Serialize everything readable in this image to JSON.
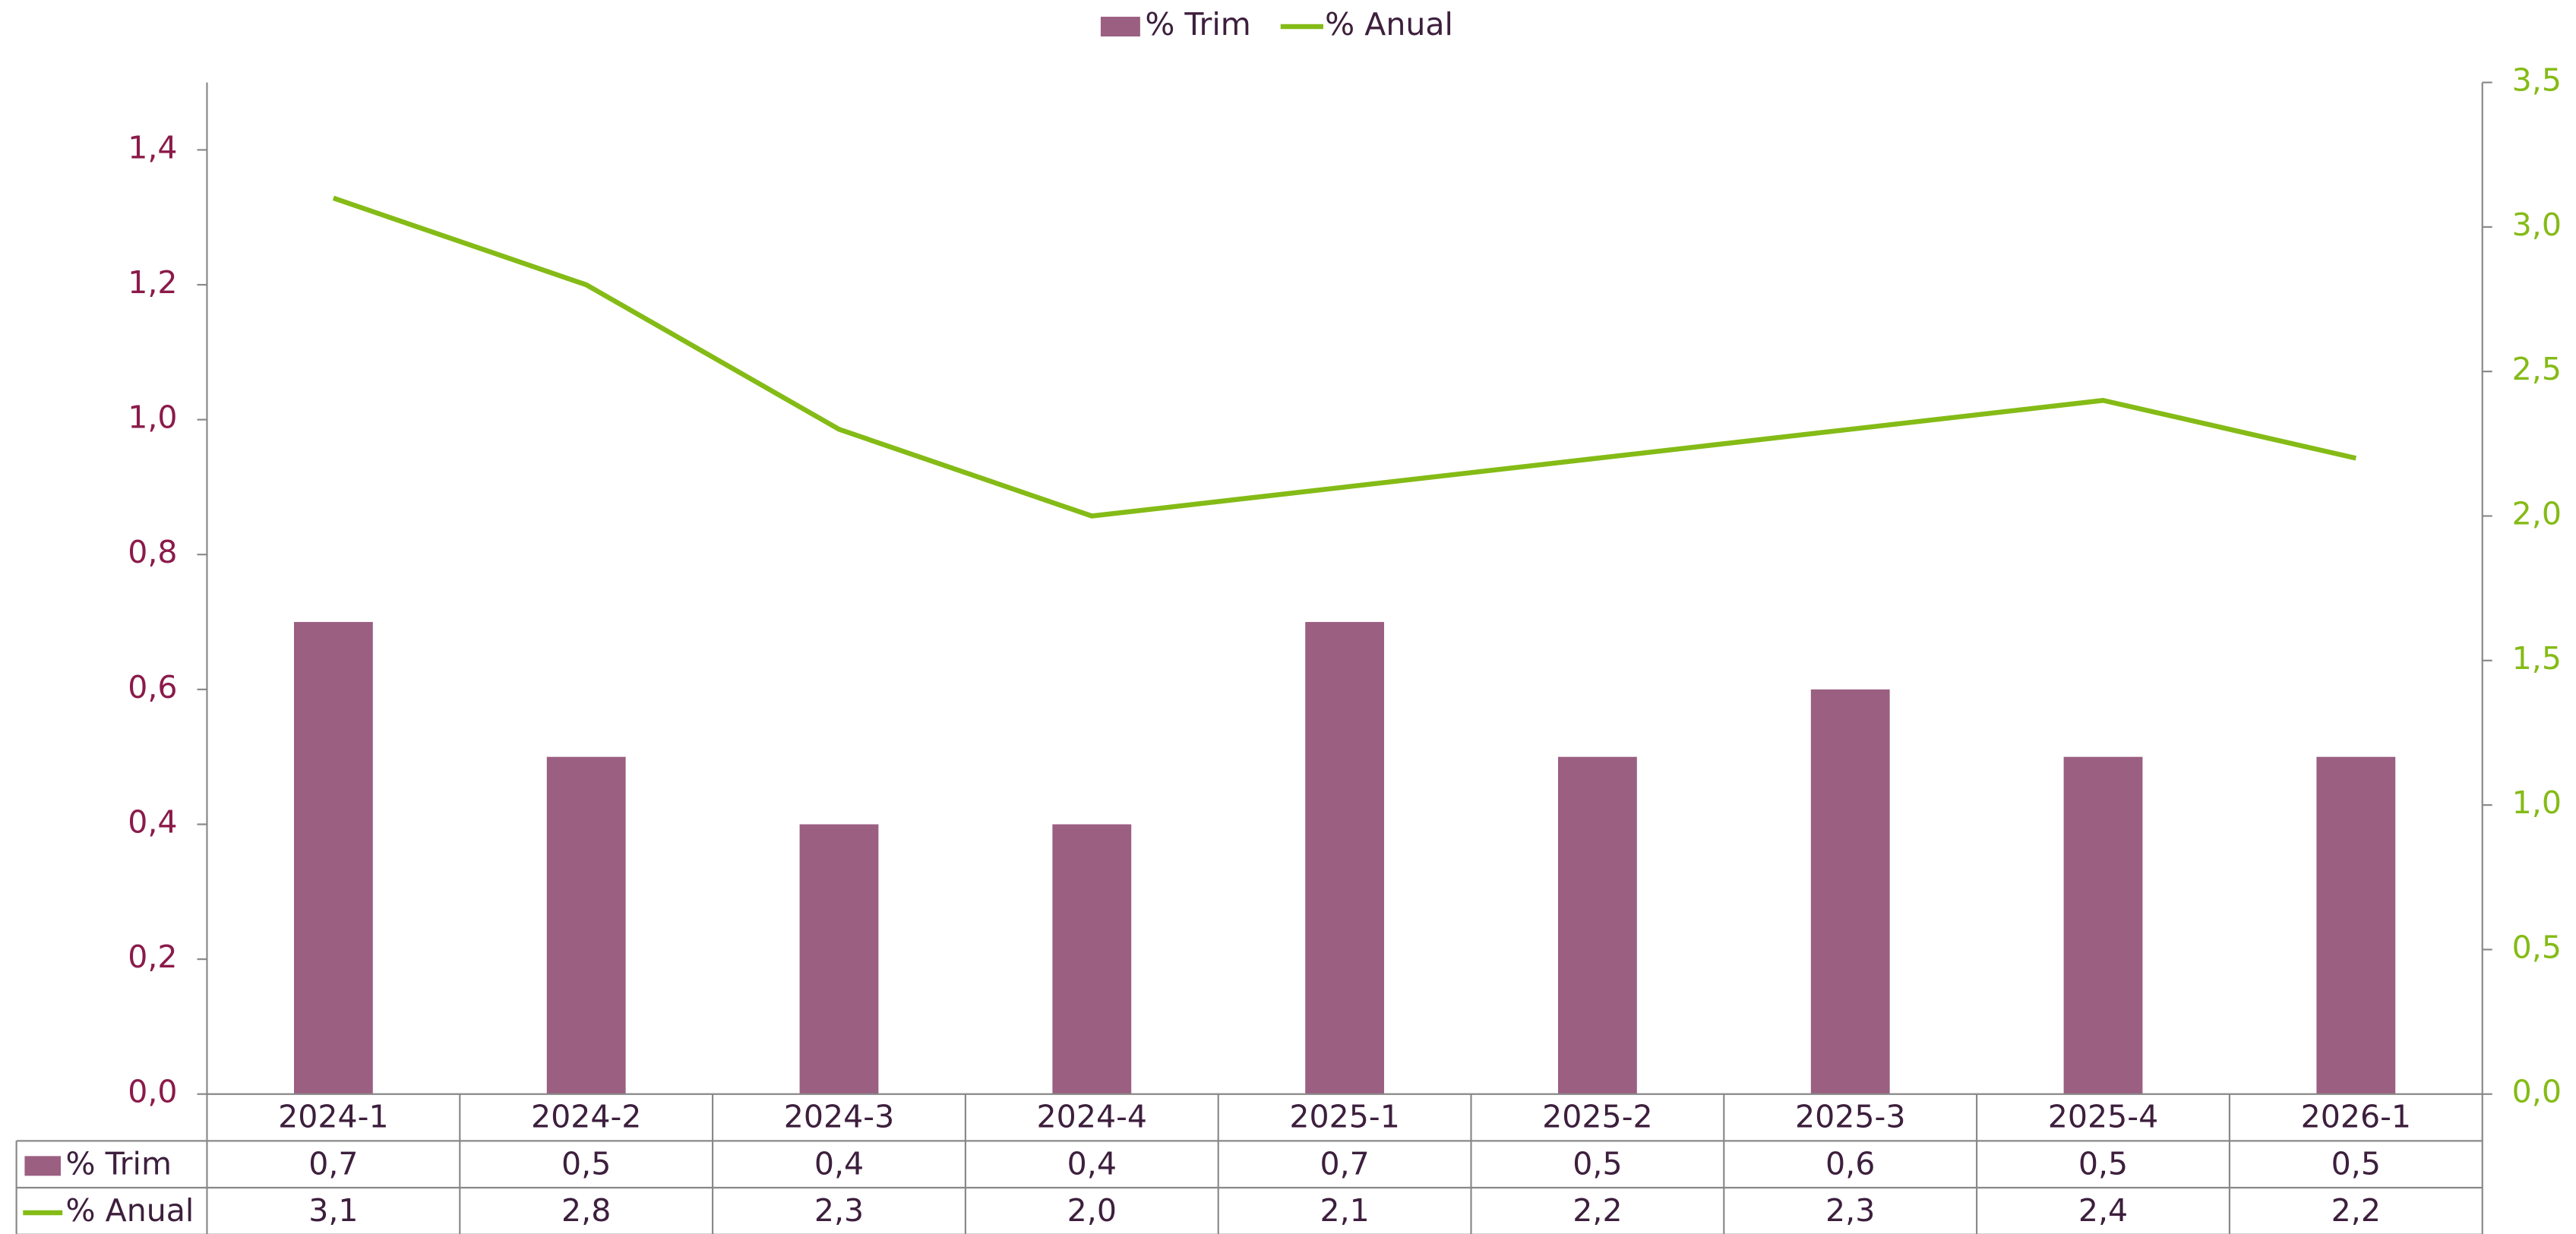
{
  "chart_data": {
    "type": "combo",
    "categories": [
      "2024-1",
      "2024-2",
      "2024-3",
      "2024-4",
      "2025-1",
      "2025-2",
      "2025-3",
      "2025-4",
      "2026-1"
    ],
    "series": [
      {
        "name": "% Trim",
        "type": "bar",
        "color": "#9b5f82",
        "axis": "y",
        "values": [
          0.7,
          0.5,
          0.4,
          0.4,
          0.7,
          0.5,
          0.6,
          0.5,
          0.5
        ],
        "value_labels": [
          "0,7",
          "0,5",
          "0,4",
          "0,4",
          "0,7",
          "0,5",
          "0,6",
          "0,5",
          "0,5"
        ]
      },
      {
        "name": "% Anual",
        "type": "line",
        "color": "#84bb16",
        "axis": "y2",
        "values": [
          3.1,
          2.8,
          2.3,
          2.0,
          2.1,
          2.2,
          2.3,
          2.4,
          2.2
        ],
        "value_labels": [
          "3,1",
          "2,8",
          "2,3",
          "2,0",
          "2,1",
          "2,2",
          "2,3",
          "2,4",
          "2,2"
        ]
      }
    ],
    "ylim": [
      0,
      1.5
    ],
    "yticks": [
      {
        "value": 0,
        "label": "0,0"
      },
      {
        "value": 0.2,
        "label": "0,2"
      },
      {
        "value": 0.4,
        "label": "0,4"
      },
      {
        "value": 0.6,
        "label": "0,6"
      },
      {
        "value": 0.8,
        "label": "0,8"
      },
      {
        "value": 1.0,
        "label": "1,0"
      },
      {
        "value": 1.2,
        "label": "1,2"
      },
      {
        "value": 1.4,
        "label": "1,4"
      }
    ],
    "y2lim": [
      0,
      3.5
    ],
    "y2ticks": [
      {
        "value": 0,
        "label": "0,0"
      },
      {
        "value": 0.5,
        "label": "0,5"
      },
      {
        "value": 1.0,
        "label": "1,0"
      },
      {
        "value": 1.5,
        "label": "1,5"
      },
      {
        "value": 2.0,
        "label": "2,0"
      },
      {
        "value": 2.5,
        "label": "2,5"
      },
      {
        "value": 3.0,
        "label": "3,0"
      },
      {
        "value": 3.5,
        "label": "3,5"
      }
    ],
    "legend": "top",
    "ytick_color": "#8b1a4a",
    "y2tick_color": "#84bb16",
    "text_color": "#3d1f3d"
  }
}
